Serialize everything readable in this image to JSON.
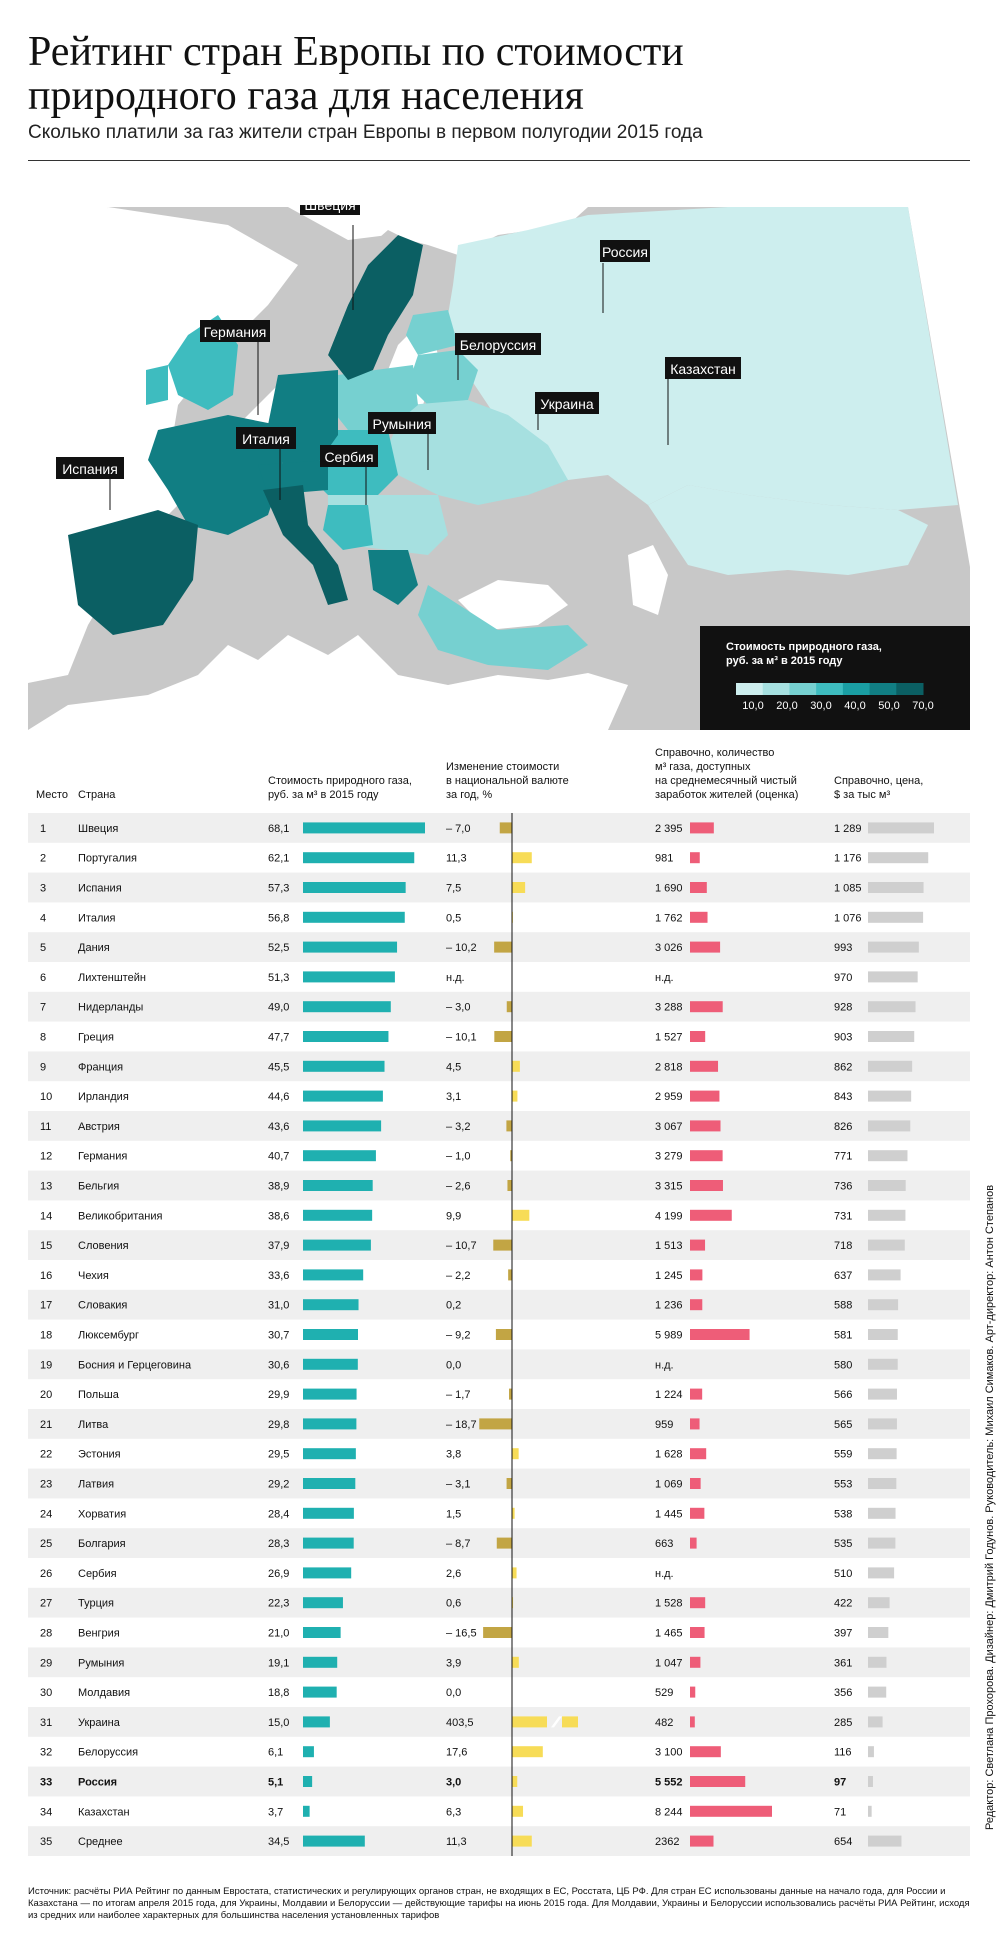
{
  "header": {
    "title": "Рейтинг стран Европы по стоимости природного газа для населения",
    "subtitle": "Сколько платили за газ жители стран Европы в первом полугодии 2015 года"
  },
  "map": {
    "labels": [
      "Швеция",
      "Россия",
      "Германия",
      "Белоруссия",
      "Казахстан",
      "Украина",
      "Румыния",
      "Италия",
      "Сербия",
      "Испания"
    ],
    "legend": {
      "title": "Стоимость природного газа,",
      "title2": "руб. за м³ в 2015 году",
      "ticks": [
        "10,0",
        "20,0",
        "30,0",
        "40,0",
        "50,0",
        "70,0"
      ],
      "colors": [
        "#cdeeee",
        "#a6e0e0",
        "#76d0d0",
        "#3ebcbf",
        "#1a9ea3",
        "#117e83",
        "#0b5f63"
      ]
    },
    "colors": {
      "sea": "#ffffff",
      "land_other": "#c6c6c6",
      "land_edge": "#b3b3b3"
    }
  },
  "columns": {
    "rank": "Место",
    "country": "Страна",
    "price": "Стоимость природного газа,\nруб. за м³ в 2015 году",
    "change": "Изменение стоимости\nв национальной валюте\nза год, %",
    "volume": "Справочно, количество\nм³ газа, доступных\nна среднемесячный чистый\nзаработок жителей (оценка)",
    "usd": "Справочно, цена,\n$ за тыс м³"
  },
  "chart_data": {
    "type": "table",
    "columns": [
      "Место",
      "Страна",
      "Стоимость природного газа, руб. за м³ в 2015 году",
      "Изменение стоимости в национальной валюте за год, %",
      "Справочно, количество м³ газа, доступных на среднемесячный чистый заработок жителей (оценка)",
      "Справочно, цена, $ за тыс м³"
    ],
    "rows": [
      {
        "rank": "1",
        "country": "Швеция",
        "price": 68.1,
        "price_label": "68,1",
        "change": -7.0,
        "change_label": "– 7,0",
        "volume": 2395,
        "volume_label": "2 395",
        "usd": 1289,
        "usd_label": "1 289"
      },
      {
        "rank": "2",
        "country": "Португалия",
        "price": 62.1,
        "price_label": "62,1",
        "change": 11.3,
        "change_label": "11,3",
        "volume": 981,
        "volume_label": "981",
        "usd": 1176,
        "usd_label": "1 176"
      },
      {
        "rank": "3",
        "country": "Испания",
        "price": 57.3,
        "price_label": "57,3",
        "change": 7.5,
        "change_label": "7,5",
        "volume": 1690,
        "volume_label": "1 690",
        "usd": 1085,
        "usd_label": "1 085"
      },
      {
        "rank": "4",
        "country": "Италия",
        "price": 56.8,
        "price_label": "56,8",
        "change": 0.5,
        "change_label": "0,5",
        "volume": 1762,
        "volume_label": "1 762",
        "usd": 1076,
        "usd_label": "1 076"
      },
      {
        "rank": "5",
        "country": "Дания",
        "price": 52.5,
        "price_label": "52,5",
        "change": -10.2,
        "change_label": "– 10,2",
        "volume": 3026,
        "volume_label": "3 026",
        "usd": 993,
        "usd_label": "993"
      },
      {
        "rank": "6",
        "country": "Лихтенштейн",
        "price": 51.3,
        "price_label": "51,3",
        "change": null,
        "change_label": "н.д.",
        "volume": null,
        "volume_label": "н.д.",
        "usd": 970,
        "usd_label": "970"
      },
      {
        "rank": "7",
        "country": "Нидерланды",
        "price": 49.0,
        "price_label": "49,0",
        "change": -3.0,
        "change_label": "– 3,0",
        "volume": 3288,
        "volume_label": "3 288",
        "usd": 928,
        "usd_label": "928"
      },
      {
        "rank": "8",
        "country": "Греция",
        "price": 47.7,
        "price_label": "47,7",
        "change": -10.1,
        "change_label": "– 10,1",
        "volume": 1527,
        "volume_label": "1 527",
        "usd": 903,
        "usd_label": "903"
      },
      {
        "rank": "9",
        "country": "Франция",
        "price": 45.5,
        "price_label": "45,5",
        "change": 4.5,
        "change_label": "4,5",
        "volume": 2818,
        "volume_label": "2 818",
        "usd": 862,
        "usd_label": "862"
      },
      {
        "rank": "10",
        "country": "Ирландия",
        "price": 44.6,
        "price_label": "44,6",
        "change": 3.1,
        "change_label": "3,1",
        "volume": 2959,
        "volume_label": "2 959",
        "usd": 843,
        "usd_label": "843"
      },
      {
        "rank": "11",
        "country": "Австрия",
        "price": 43.6,
        "price_label": "43,6",
        "change": -3.2,
        "change_label": "– 3,2",
        "volume": 3067,
        "volume_label": "3 067",
        "usd": 826,
        "usd_label": "826"
      },
      {
        "rank": "12",
        "country": "Германия",
        "price": 40.7,
        "price_label": "40,7",
        "change": -1.0,
        "change_label": "– 1,0",
        "volume": 3279,
        "volume_label": "3 279",
        "usd": 771,
        "usd_label": "771"
      },
      {
        "rank": "13",
        "country": "Бельгия",
        "price": 38.9,
        "price_label": "38,9",
        "change": -2.6,
        "change_label": "– 2,6",
        "volume": 3315,
        "volume_label": "3 315",
        "usd": 736,
        "usd_label": "736"
      },
      {
        "rank": "14",
        "country": "Великобритания",
        "price": 38.6,
        "price_label": "38,6",
        "change": 9.9,
        "change_label": "9,9",
        "volume": 4199,
        "volume_label": "4 199",
        "usd": 731,
        "usd_label": "731"
      },
      {
        "rank": "15",
        "country": "Словения",
        "price": 37.9,
        "price_label": "37,9",
        "change": -10.7,
        "change_label": "– 10,7",
        "volume": 1513,
        "volume_label": "1 513",
        "usd": 718,
        "usd_label": "718"
      },
      {
        "rank": "16",
        "country": "Чехия",
        "price": 33.6,
        "price_label": "33,6",
        "change": -2.2,
        "change_label": "– 2,2",
        "volume": 1245,
        "volume_label": "1 245",
        "usd": 637,
        "usd_label": "637"
      },
      {
        "rank": "17",
        "country": "Словакия",
        "price": 31.0,
        "price_label": "31,0",
        "change": 0.2,
        "change_label": "0,2",
        "volume": 1236,
        "volume_label": "1 236",
        "usd": 588,
        "usd_label": "588"
      },
      {
        "rank": "18",
        "country": "Люксембург",
        "price": 30.7,
        "price_label": "30,7",
        "change": -9.2,
        "change_label": "– 9,2",
        "volume": 5989,
        "volume_label": "5 989",
        "usd": 581,
        "usd_label": "581"
      },
      {
        "rank": "19",
        "country": "Босния и Герцеговина",
        "price": 30.6,
        "price_label": "30,6",
        "change": 0.0,
        "change_label": "0,0",
        "volume": null,
        "volume_label": "н.д.",
        "usd": 580,
        "usd_label": "580"
      },
      {
        "rank": "20",
        "country": "Польша",
        "price": 29.9,
        "price_label": "29,9",
        "change": -1.7,
        "change_label": "– 1,7",
        "volume": 1224,
        "volume_label": "1 224",
        "usd": 566,
        "usd_label": "566"
      },
      {
        "rank": "21",
        "country": "Литва",
        "price": 29.8,
        "price_label": "29,8",
        "change": -18.7,
        "change_label": "– 18,7",
        "volume": 959,
        "volume_label": "959",
        "usd": 565,
        "usd_label": "565"
      },
      {
        "rank": "22",
        "country": "Эстония",
        "price": 29.5,
        "price_label": "29,5",
        "change": 3.8,
        "change_label": "3,8",
        "volume": 1628,
        "volume_label": "1 628",
        "usd": 559,
        "usd_label": "559"
      },
      {
        "rank": "23",
        "country": "Латвия",
        "price": 29.2,
        "price_label": "29,2",
        "change": -3.1,
        "change_label": "– 3,1",
        "volume": 1069,
        "volume_label": "1 069",
        "usd": 553,
        "usd_label": "553"
      },
      {
        "rank": "24",
        "country": "Хорватия",
        "price": 28.4,
        "price_label": "28,4",
        "change": 1.5,
        "change_label": "1,5",
        "volume": 1445,
        "volume_label": "1 445",
        "usd": 538,
        "usd_label": "538"
      },
      {
        "rank": "25",
        "country": "Болгария",
        "price": 28.3,
        "price_label": "28,3",
        "change": -8.7,
        "change_label": "– 8,7",
        "volume": 663,
        "volume_label": "663",
        "usd": 535,
        "usd_label": "535"
      },
      {
        "rank": "26",
        "country": "Сербия",
        "price": 26.9,
        "price_label": "26,9",
        "change": 2.6,
        "change_label": "2,6",
        "volume": null,
        "volume_label": "н.д.",
        "usd": 510,
        "usd_label": "510"
      },
      {
        "rank": "27",
        "country": "Турция",
        "price": 22.3,
        "price_label": "22,3",
        "change": 0.6,
        "change_label": "0,6",
        "volume": 1528,
        "volume_label": "1 528",
        "usd": 422,
        "usd_label": "422"
      },
      {
        "rank": "28",
        "country": "Венгрия",
        "price": 21.0,
        "price_label": "21,0",
        "change": -16.5,
        "change_label": "– 16,5",
        "volume": 1465,
        "volume_label": "1 465",
        "usd": 397,
        "usd_label": "397"
      },
      {
        "rank": "29",
        "country": "Румыния",
        "price": 19.1,
        "price_label": "19,1",
        "change": 3.9,
        "change_label": "3,9",
        "volume": 1047,
        "volume_label": "1 047",
        "usd": 361,
        "usd_label": "361"
      },
      {
        "rank": "30",
        "country": "Молдавия",
        "price": 18.8,
        "price_label": "18,8",
        "change": 0.0,
        "change_label": "0,0",
        "volume": 529,
        "volume_label": "529",
        "usd": 356,
        "usd_label": "356"
      },
      {
        "rank": "31",
        "country": "Украина",
        "price": 15.0,
        "price_label": "15,0",
        "change": 403.5,
        "change_label": "403,5",
        "volume": 482,
        "volume_label": "482",
        "usd": 285,
        "usd_label": "285"
      },
      {
        "rank": "32",
        "country": "Белоруссия",
        "price": 6.1,
        "price_label": "6,1",
        "change": 17.6,
        "change_label": "17,6",
        "volume": 3100,
        "volume_label": "3 100",
        "usd": 116,
        "usd_label": "116"
      },
      {
        "rank": "33",
        "country": "Россия",
        "price": 5.1,
        "price_label": "5,1",
        "change": 3.0,
        "change_label": "3,0",
        "volume": 5552,
        "volume_label": "5 552",
        "usd": 97,
        "usd_label": "97",
        "bold": true
      },
      {
        "rank": "34",
        "country": "Казахстан",
        "price": 3.7,
        "price_label": "3,7",
        "change": 6.3,
        "change_label": "6,3",
        "volume": 8244,
        "volume_label": "8 244",
        "usd": 71,
        "usd_label": "71"
      },
      {
        "rank": "35",
        "country": "Среднее",
        "price": 34.5,
        "price_label": "34,5",
        "change": 11.3,
        "change_label": "11,3",
        "volume": 2362,
        "volume_label": "2362",
        "usd": 654,
        "usd_label": "654"
      }
    ],
    "colors": {
      "price_bar": "#1fb0b0",
      "change_pos": "#f7dc57",
      "change_neg": "#c2a544",
      "volume_bar": "#ee5d78",
      "usd_bar": "#cfcfcf",
      "row_alt": "#efefef"
    },
    "change_bar_cap": 20
  },
  "footnote": "Источник: расчёты РИА Рейтинг по данным Евростата, статистических и регулирующих органов стран, не входящих в ЕС, Росстата, ЦБ РФ. Для стран ЕС использованы данные на начало года, для России и Казахстана — по итогам апреля 2015 года, для Украины, Молдавии и Белоруссии — действующие тарифы на июнь 2015 года. Для Молдавии, Украины и Белоруссии использовались расчёты РИА Рейтинг, исходя из средних или наиболее характерных для большинства населения установленных тарифов",
  "credits": "Редактор: Светлана Прохорова. Дизайнер: Дмитрий Годунов. Руководитель: Михаил Симаков. Арт-директор: Антон Степанов"
}
